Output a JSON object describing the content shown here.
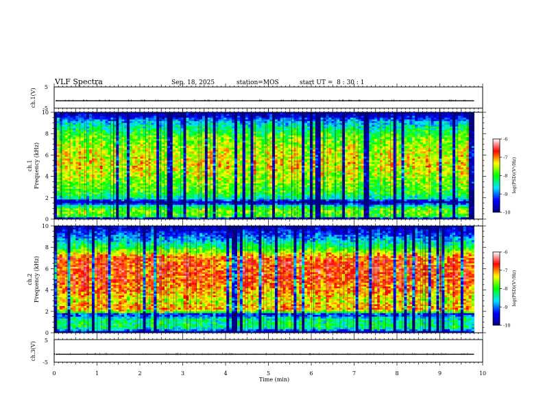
{
  "header": {
    "title": "VLF Spectra",
    "date": "Sep. 18, 2025",
    "station": "station=MOS",
    "start_ut": "start UT =  8 : 30 : 1"
  },
  "chart_data": [
    {
      "panel": "ch1-waveform",
      "type": "line",
      "ylabel": "ch.1(V)",
      "ylim": [
        -5,
        5
      ],
      "yticks": [
        "5",
        "-5"
      ],
      "xlim": [
        0,
        10
      ],
      "trace_level": -1.5,
      "trace_end": 9.8
    },
    {
      "panel": "ch1-spectrogram",
      "type": "heatmap",
      "ylabel_line1": "ch.1",
      "ylabel_line2": "Frequency (kHz)",
      "ylim": [
        0,
        10
      ],
      "yticks": [
        "0",
        "2",
        "4",
        "6",
        "8",
        "10"
      ],
      "xlim": [
        0,
        10
      ],
      "data_end": 9.8,
      "colorbar": {
        "label": "log(PSD)(V²/Hz)",
        "range": [
          -10,
          -6
        ],
        "ticks": [
          "-6",
          "-7",
          "-8",
          "-9",
          "-10"
        ]
      },
      "profile": [
        {
          "f": 0.0,
          "v": -10.0
        },
        {
          "f": 0.25,
          "v": -8.0
        },
        {
          "f": 0.8,
          "v": -7.7
        },
        {
          "f": 1.3,
          "v": -8.6
        },
        {
          "f": 1.5,
          "v": -9.7
        },
        {
          "f": 1.65,
          "v": -9.9
        },
        {
          "f": 1.85,
          "v": -8.6
        },
        {
          "f": 2.5,
          "v": -8.0
        },
        {
          "f": 3.5,
          "v": -7.7
        },
        {
          "f": 5.0,
          "v": -7.35
        },
        {
          "f": 6.5,
          "v": -7.5
        },
        {
          "f": 7.8,
          "v": -7.9
        },
        {
          "f": 8.6,
          "v": -8.4
        },
        {
          "f": 9.2,
          "v": -8.9
        },
        {
          "f": 9.6,
          "v": -9.5
        },
        {
          "f": 10.0,
          "v": -9.9
        }
      ]
    },
    {
      "panel": "ch2-spectrogram",
      "type": "heatmap",
      "ylabel_line1": "ch.2",
      "ylabel_line2": "Frequency (kHz)",
      "ylim": [
        0,
        10
      ],
      "yticks": [
        "0",
        "2",
        "4",
        "6",
        "8",
        "10"
      ],
      "xlim": [
        0,
        10
      ],
      "data_end": 9.8,
      "colorbar": {
        "label": "log(PSD)(V²/Hz)",
        "range": [
          -10,
          -6
        ],
        "ticks": [
          "-6",
          "-7",
          "-8",
          "-9",
          "-10"
        ]
      },
      "profile": [
        {
          "f": 0.0,
          "v": -10.0
        },
        {
          "f": 0.2,
          "v": -9.0
        },
        {
          "f": 0.5,
          "v": -8.2
        },
        {
          "f": 1.2,
          "v": -8.3
        },
        {
          "f": 1.5,
          "v": -8.8
        },
        {
          "f": 1.7,
          "v": -9.6
        },
        {
          "f": 1.9,
          "v": -8.0
        },
        {
          "f": 2.2,
          "v": -7.0
        },
        {
          "f": 3.0,
          "v": -7.4
        },
        {
          "f": 4.0,
          "v": -7.0
        },
        {
          "f": 5.5,
          "v": -6.75
        },
        {
          "f": 7.0,
          "v": -6.85
        },
        {
          "f": 7.6,
          "v": -7.6
        },
        {
          "f": 8.2,
          "v": -8.3
        },
        {
          "f": 8.8,
          "v": -8.8
        },
        {
          "f": 9.4,
          "v": -9.3
        },
        {
          "f": 10.0,
          "v": -9.8
        }
      ]
    },
    {
      "panel": "ch3-waveform",
      "type": "line",
      "ylabel": "ch.3(V)",
      "ylim": [
        -5,
        5
      ],
      "yticks": [
        "5",
        "-5"
      ],
      "xlim": [
        0,
        10
      ],
      "trace_level": -1.5,
      "trace_end": 9.8
    }
  ],
  "xaxis": {
    "label": "Time (min)",
    "ticks": [
      "0",
      "1",
      "2",
      "3",
      "4",
      "5",
      "6",
      "7",
      "8",
      "9",
      "10"
    ],
    "range": [
      0,
      10
    ]
  },
  "colors": {
    "scale": [
      "#000080",
      "#0000ff",
      "#00e5ff",
      "#00ff00",
      "#ffff00",
      "#ff0000",
      "#ffffff"
    ]
  }
}
